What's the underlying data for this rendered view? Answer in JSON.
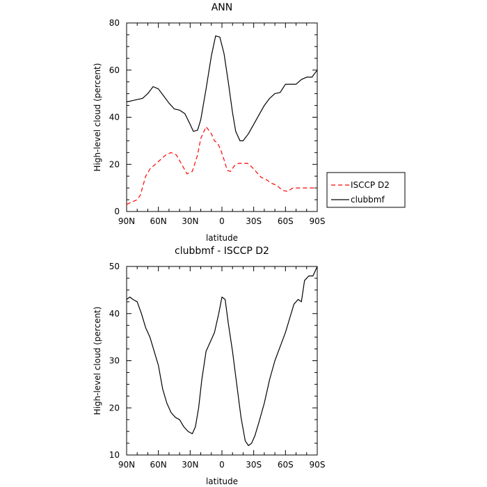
{
  "chart_data": [
    {
      "type": "line",
      "title": "ANN",
      "xlabel": "latitude",
      "ylabel": "High-level cloud (percent)",
      "xlim": [
        90,
        -90
      ],
      "ylim": [
        0,
        80
      ],
      "x_tick_values": [
        90,
        60,
        30,
        0,
        -30,
        -60,
        -90
      ],
      "x_tick_labels": [
        "90N",
        "60N",
        "30N",
        "0",
        "30S",
        "60S",
        "90S"
      ],
      "y_ticks": [
        0,
        20,
        40,
        60,
        80
      ],
      "legend": {
        "position": "right",
        "entries": [
          "ISCCP D2",
          "clubbmf"
        ]
      },
      "series": [
        {
          "name": "ISCCP D2",
          "color": "#ff0000",
          "dash": true,
          "x": [
            90,
            85,
            80,
            77,
            72,
            68,
            63,
            58,
            53,
            48,
            43,
            38,
            33,
            28,
            23,
            20,
            15,
            10,
            7,
            4,
            1,
            -2,
            -5,
            -8,
            -12,
            -16,
            -20,
            -24,
            -28,
            -32,
            -37,
            -42,
            -47,
            -52,
            -57,
            -62,
            -67,
            -72,
            -77,
            -82,
            -87,
            -90
          ],
          "y": [
            3,
            4,
            5,
            7,
            15,
            18,
            20,
            22,
            24,
            25,
            24,
            20,
            16,
            17,
            24,
            31,
            36,
            33,
            30,
            29,
            26,
            22,
            17.5,
            17,
            19.5,
            20.5,
            20.5,
            20.5,
            19,
            17,
            14.5,
            13.5,
            12,
            11,
            9,
            8.5,
            10,
            10,
            10,
            10,
            10,
            10
          ]
        },
        {
          "name": "clubbmf",
          "color": "#000000",
          "dash": false,
          "x": [
            90,
            85,
            80,
            75,
            70,
            65,
            60,
            55,
            50,
            45,
            40,
            35,
            30,
            27,
            23,
            20,
            15,
            10,
            6,
            2,
            -2,
            -6,
            -10,
            -13,
            -17,
            -20,
            -25,
            -30,
            -35,
            -40,
            -45,
            -50,
            -55,
            -60,
            -65,
            -70,
            -75,
            -80,
            -85,
            -90
          ],
          "y": [
            46.5,
            47,
            47.5,
            48,
            50,
            53,
            52,
            49,
            46,
            43.5,
            43,
            41.5,
            37,
            34,
            34.5,
            39,
            52,
            66,
            74.5,
            74,
            67,
            55,
            42,
            34,
            30,
            30,
            33,
            37,
            41,
            45,
            48,
            50,
            50.5,
            54,
            54,
            54,
            56,
            57,
            57,
            60
          ]
        }
      ]
    },
    {
      "type": "line",
      "title": "clubbmf - ISCCP D2",
      "xlabel": "latitude",
      "ylabel": "High-level cloud (percent)",
      "xlim": [
        90,
        -90
      ],
      "ylim": [
        10,
        50
      ],
      "x_tick_values": [
        90,
        60,
        30,
        0,
        -30,
        -60,
        -90
      ],
      "x_tick_labels": [
        "90N",
        "60N",
        "30N",
        "0",
        "30S",
        "60S",
        "90S"
      ],
      "y_ticks": [
        10,
        20,
        30,
        40,
        50
      ],
      "series": [
        {
          "color": "#000000",
          "dash": false,
          "x": [
            90,
            87,
            84,
            80,
            76,
            72,
            68,
            64,
            60,
            56,
            52,
            48,
            44,
            40,
            36,
            32,
            28,
            25,
            22,
            19,
            15,
            11,
            7,
            3,
            0,
            -3,
            -6,
            -10,
            -14,
            -18,
            -22,
            -25,
            -28,
            -31,
            -35,
            -40,
            -45,
            -50,
            -55,
            -60,
            -64,
            -68,
            -72,
            -75,
            -78,
            -82,
            -86,
            -90
          ],
          "y": [
            43,
            43.5,
            43,
            42.5,
            40,
            37,
            35,
            32,
            29,
            24,
            21,
            19,
            18,
            17.5,
            16,
            15,
            14.5,
            16,
            20,
            26,
            32,
            34,
            36,
            40,
            43.5,
            43,
            38,
            32,
            25,
            18,
            13,
            12,
            12.5,
            14,
            17,
            21,
            26,
            30,
            33,
            36,
            39,
            42,
            43,
            42.5,
            47,
            48,
            48,
            50
          ]
        }
      ]
    }
  ]
}
